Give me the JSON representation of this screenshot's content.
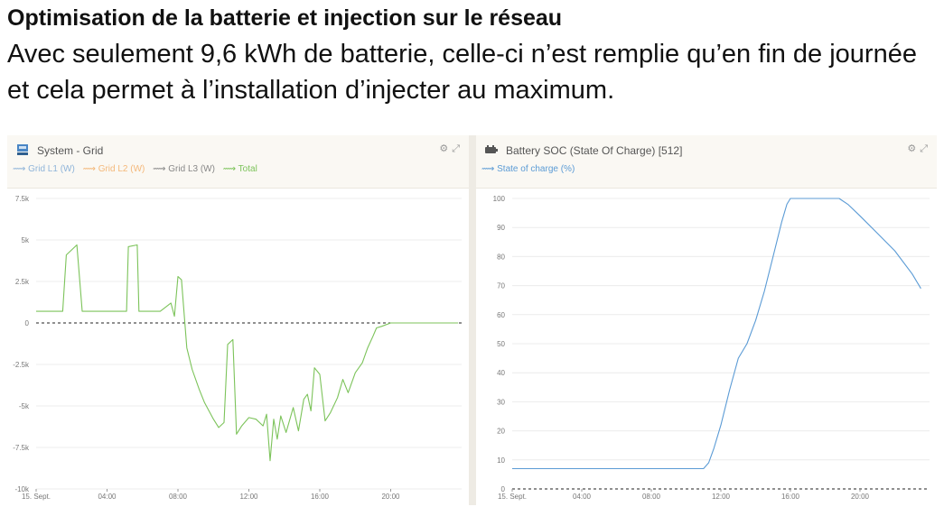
{
  "header": {
    "title": "Optimisation de la batterie et injection sur le réseau",
    "subtitle": "Avec seulement 9,6 kWh de batterie, celle-ci n’est remplie qu’en fin de journée et cela permet à l’installation d’injecter au maximum."
  },
  "panels": [
    {
      "title": "System - Grid",
      "icon": "grid-meter-icon",
      "legend": [
        {
          "label": "Grid L1 (W)",
          "color": "#8fb4d9"
        },
        {
          "label": "Grid L2 (W)",
          "color": "#f4b87a"
        },
        {
          "label": "Grid L3 (W)",
          "color": "#888888"
        },
        {
          "label": "Total",
          "color": "#7cc35a"
        }
      ]
    },
    {
      "title": "Battery SOC (State Of Charge) [512]",
      "icon": "battery-icon",
      "legend": [
        {
          "label": "State of charge (%)",
          "color": "#5b9bd5"
        }
      ]
    }
  ],
  "chart_data": [
    {
      "type": "line",
      "title": "System - Grid",
      "ylabel": "W",
      "ylim": [
        -10000,
        7500
      ],
      "yticks": [
        7500,
        5000,
        2500,
        0,
        -2500,
        -5000,
        -7500,
        -10000
      ],
      "ytick_labels": [
        "7.5k",
        "5k",
        "2.5k",
        "0",
        "-2.5k",
        "-5k",
        "-7.5k",
        "-10k"
      ],
      "xlim": [
        0,
        24
      ],
      "xticks": [
        0,
        4,
        8,
        12,
        16,
        20
      ],
      "xtick_labels": [
        "15. Sept.",
        "04:00",
        "08:00",
        "12:00",
        "16:00",
        "20:00"
      ],
      "series": [
        {
          "name": "Total",
          "color": "#7cc35a",
          "x": [
            0,
            1.5,
            1.7,
            2.3,
            2.6,
            3.6,
            5.1,
            5.2,
            5.7,
            5.8,
            7.0,
            7.6,
            7.8,
            8.0,
            8.2,
            8.5,
            8.8,
            9.2,
            9.5,
            10.0,
            10.3,
            10.6,
            10.8,
            11.1,
            11.3,
            11.6,
            12.0,
            12.4,
            12.8,
            13.0,
            13.2,
            13.4,
            13.6,
            13.8,
            14.1,
            14.5,
            14.8,
            15.1,
            15.3,
            15.5,
            15.7,
            16.0,
            16.3,
            16.6,
            17.0,
            17.3,
            17.6,
            18.0,
            18.4,
            18.7,
            19.0,
            19.2,
            19.5,
            20.0,
            21.0,
            22.0,
            23.0,
            23.8
          ],
          "y": [
            700,
            700,
            4100,
            4700,
            700,
            700,
            700,
            4600,
            4700,
            700,
            700,
            1200,
            400,
            2800,
            2600,
            -1500,
            -2800,
            -4000,
            -4800,
            -5800,
            -6300,
            -6000,
            -1300,
            -1000,
            -6700,
            -6200,
            -5700,
            -5800,
            -6200,
            -5500,
            -8300,
            -5800,
            -7000,
            -5600,
            -6600,
            -5100,
            -6500,
            -4600,
            -4300,
            -5300,
            -2700,
            -3100,
            -5900,
            -5400,
            -4500,
            -3400,
            -4200,
            -3000,
            -2400,
            -1500,
            -800,
            -300,
            -200,
            0,
            0,
            0,
            0,
            0
          ]
        }
      ]
    },
    {
      "type": "line",
      "title": "Battery SOC (State Of Charge) [512]",
      "ylabel": "%",
      "ylim": [
        0,
        100
      ],
      "yticks": [
        0,
        10,
        20,
        30,
        40,
        50,
        60,
        70,
        80,
        90,
        100
      ],
      "ytick_labels": [
        "0",
        "10",
        "20",
        "30",
        "40",
        "50",
        "60",
        "70",
        "80",
        "90",
        "100"
      ],
      "xlim": [
        0,
        24
      ],
      "xticks": [
        0,
        4,
        8,
        12,
        16,
        20
      ],
      "xtick_labels": [
        "15. Sept.",
        "04:00",
        "08:00",
        "12:00",
        "16:00",
        "20:00"
      ],
      "series": [
        {
          "name": "State of charge (%)",
          "color": "#5b9bd5",
          "x": [
            0,
            11.0,
            11.3,
            11.6,
            12.0,
            12.5,
            13.0,
            13.5,
            14.0,
            14.5,
            15.0,
            15.5,
            15.8,
            16.0,
            16.3,
            17.0,
            18.0,
            18.8,
            19.3,
            20.0,
            21.0,
            22.0,
            23.0,
            23.5
          ],
          "y": [
            7,
            7,
            9,
            14,
            22,
            34,
            45,
            50,
            58,
            68,
            80,
            92,
            98,
            100,
            100,
            100,
            100,
            100,
            98,
            94,
            88,
            82,
            74,
            69
          ]
        }
      ]
    }
  ]
}
